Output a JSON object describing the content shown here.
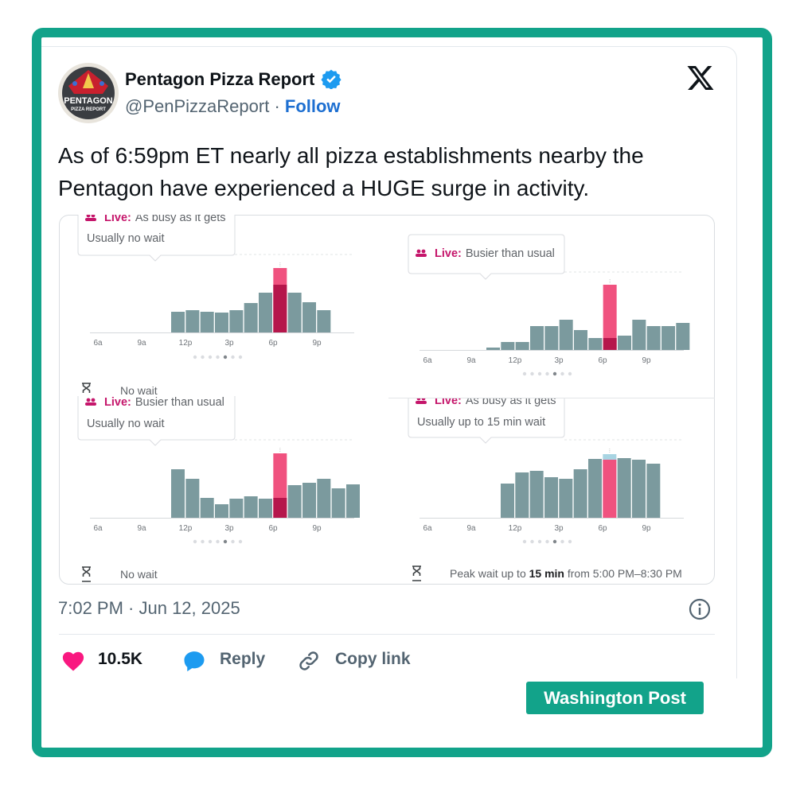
{
  "header": {
    "name": "Pentagon Pizza Report",
    "handle": "@PenPizzaReport",
    "separator": "·",
    "follow": "Follow"
  },
  "avatar": {
    "line1": "PENTAGON",
    "line2": "PIZZA REPORT"
  },
  "text": "As of 6:59pm ET nearly all pizza establishments nearby the Pentagon have experienced a HUGE surge in activity.",
  "media": {
    "hour_labels": [
      "6a",
      "9a",
      "12p",
      "3p",
      "6p",
      "9p"
    ],
    "panels": [
      {
        "live_label": "Live:",
        "status": "As busy as it gets",
        "usual_wait": "Usually no wait",
        "usual": [
          26,
          28,
          26,
          25,
          28,
          37,
          50,
          60,
          50,
          38,
          28
        ],
        "live_index": 7,
        "live": 81,
        "footer": [
          "No wait"
        ]
      },
      {
        "live_label": "Live:",
        "status": "Busier than usual",
        "usual": [
          3,
          10,
          10,
          30,
          30,
          38,
          25,
          15,
          15,
          18,
          38,
          30,
          30,
          34
        ],
        "live_index": 8,
        "live": 82
      },
      {
        "live_label": "Live:",
        "status": "Busier than usual",
        "usual_wait": "Usually no wait",
        "usual": [
          61,
          49,
          25,
          17,
          24,
          27,
          24,
          25,
          41,
          44,
          49,
          37,
          42
        ],
        "live_index": 7,
        "live": 81,
        "footer": [
          "No wait"
        ]
      },
      {
        "live_label": "Live:",
        "status": "As busy as it gets",
        "usual_wait": "Usually up to 15 min wait",
        "usual": [
          43,
          57,
          59,
          51,
          49,
          61,
          74,
          80,
          75,
          73,
          68
        ],
        "live_index": 7,
        "live": 73,
        "footer": [
          "Peak wait up to ",
          "15 min",
          " from 5:00 PM–8:30 PM"
        ]
      }
    ]
  },
  "timestamp": "7:02 PM · Jun 12, 2025",
  "actions": {
    "likes": "10.5K",
    "reply": "Reply",
    "copy_link": "Copy link"
  },
  "badge": "Washington Post"
}
